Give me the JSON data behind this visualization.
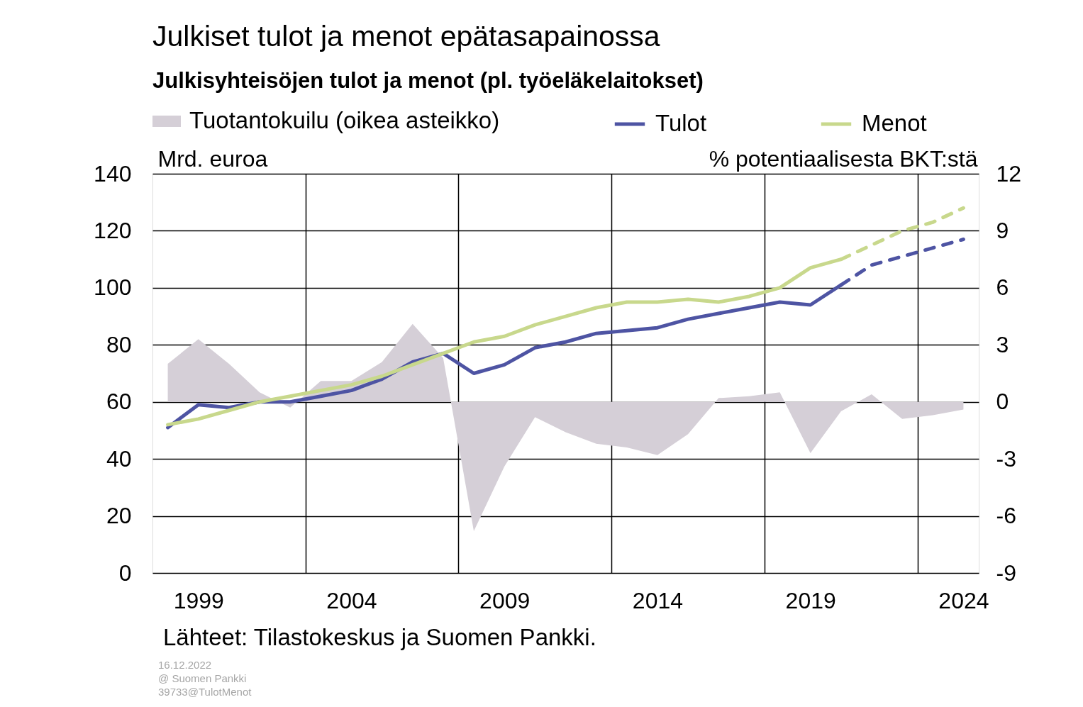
{
  "chart_data": {
    "type": "line",
    "title": "Julkiset tulot ja menot epätasapainossa",
    "subtitle": "Julkisyhteisöjen tulot ja menot (pl. työeläkelaitokset)",
    "ylabel": "Mrd. euroa",
    "y2label": "% potentiaalisesta BKT:stä",
    "x": [
      1998,
      1999,
      2000,
      2001,
      2002,
      2003,
      2004,
      2005,
      2006,
      2007,
      2008,
      2009,
      2010,
      2011,
      2012,
      2013,
      2014,
      2015,
      2016,
      2017,
      2018,
      2019,
      2020,
      2021,
      2022,
      2023,
      2024
    ],
    "xlim": [
      1997.5,
      2024.5
    ],
    "xticks": [
      1999,
      {
        "value": 2002.5,
        "label": null
      },
      2004,
      {
        "value": 2007.5,
        "label": null
      },
      2009,
      {
        "value": 2012.5,
        "label": null
      },
      2014,
      {
        "value": 2017.5,
        "label": null
      },
      2019,
      {
        "value": 2022.5,
        "label": null
      },
      2024
    ],
    "ylim": [
      0,
      140
    ],
    "yticks": [
      0,
      20,
      40,
      60,
      80,
      100,
      120,
      140
    ],
    "y2lim": [
      -9,
      12
    ],
    "y2ticks": [
      -9,
      -6,
      -3,
      0,
      3,
      6,
      9,
      12
    ],
    "grid": true,
    "legend": "top",
    "line_style": "solid",
    "series": [
      {
        "name": "Tuotantokuilu (oikea asteikko)",
        "type": "area",
        "axis": "y2",
        "color": "#d5cfd7",
        "values": [
          2.0,
          3.3,
          2.0,
          0.5,
          -0.3,
          1.1,
          1.1,
          2.1,
          4.1,
          2.3,
          -6.8,
          -3.4,
          -0.8,
          -1.6,
          -2.2,
          -2.4,
          -2.8,
          -1.7,
          0.2,
          0.3,
          0.5,
          -2.7,
          -0.5,
          0.4,
          -0.9,
          -0.7,
          -0.4
        ]
      },
      {
        "name": "Tulot",
        "color": "#4e54a3",
        "x": [
          1998,
          1999,
          2000,
          2001,
          2002,
          2003,
          2004,
          2005,
          2006,
          2007,
          2008,
          2009,
          2010,
          2011,
          2012,
          2013,
          2014,
          2015,
          2016,
          2017,
          2018,
          2019,
          2020
        ],
        "values": [
          51,
          59,
          58,
          60,
          60,
          62,
          64,
          68,
          74,
          77,
          70,
          73,
          79,
          81,
          84,
          85,
          86,
          89,
          91,
          93,
          95,
          94,
          101
        ]
      },
      {
        "color": "#4e54a3",
        "line_style": "dashed",
        "x": [
          2020,
          2021,
          2022,
          2023,
          2024
        ],
        "values": [
          101,
          108,
          111,
          114,
          117
        ]
      },
      {
        "name": "Menot",
        "color": "#c8d88c",
        "x": [
          1998,
          1999,
          2000,
          2001,
          2002,
          2003,
          2004,
          2005,
          2006,
          2007,
          2008,
          2009,
          2010,
          2011,
          2012,
          2013,
          2014,
          2015,
          2016,
          2017,
          2018,
          2019,
          2020
        ],
        "values": [
          52,
          54,
          57,
          60,
          62,
          64,
          66,
          69,
          73,
          77,
          81,
          83,
          87,
          90,
          93,
          95,
          95,
          96,
          95,
          97,
          100,
          107,
          110
        ]
      },
      {
        "color": "#c8d88c",
        "line_style": "dashed",
        "x": [
          2020,
          2021,
          2022,
          2023,
          2024
        ],
        "values": [
          110,
          115,
          120,
          123,
          128
        ]
      }
    ],
    "annotations": [
      "Lähteet: Tilastokeskus ja Suomen Pankki.",
      "16.12.2022",
      "@ Suomen Pankki",
      "39733@TulotMenot"
    ]
  }
}
